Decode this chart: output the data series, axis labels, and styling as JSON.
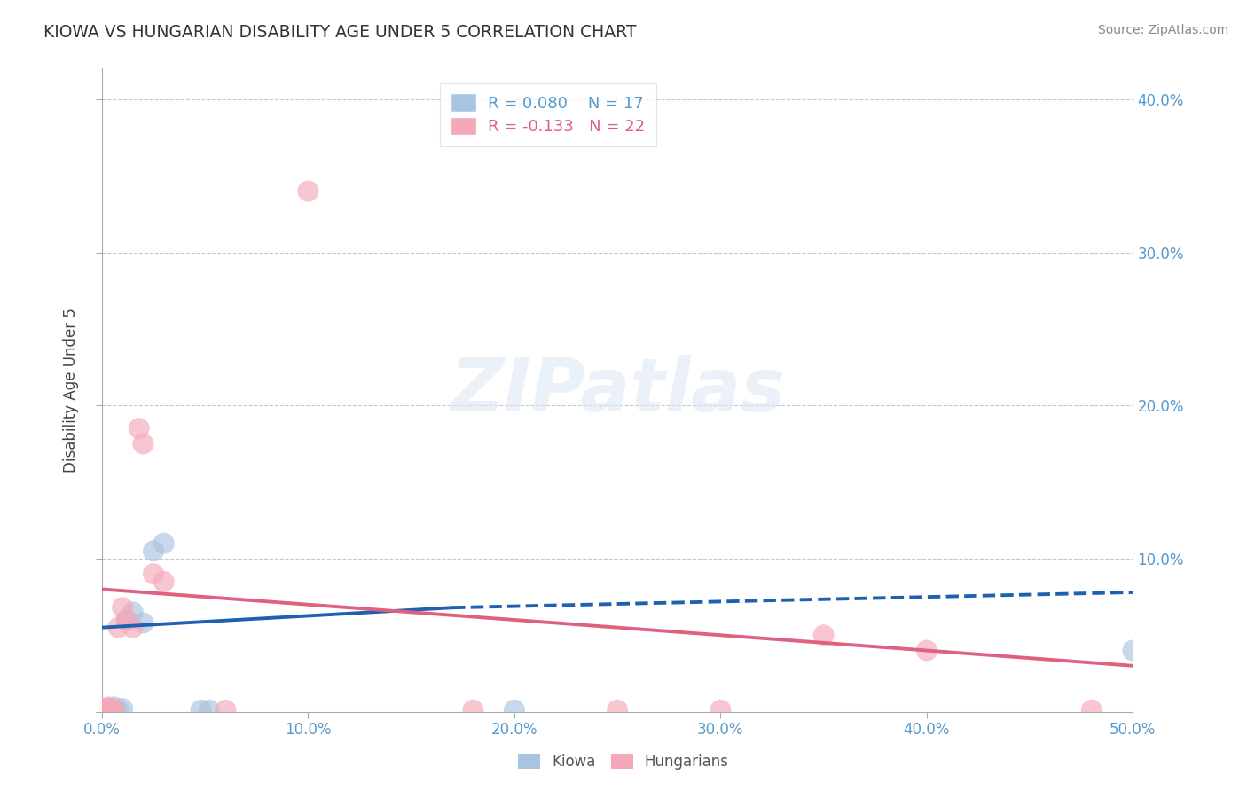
{
  "title": "KIOWA VS HUNGARIAN DISABILITY AGE UNDER 5 CORRELATION CHART",
  "source": "Source: ZipAtlas.com",
  "ylabel": "Disability Age Under 5",
  "xlim": [
    0.0,
    0.5
  ],
  "ylim": [
    0.0,
    0.42
  ],
  "xticks": [
    0.0,
    0.1,
    0.2,
    0.3,
    0.4,
    0.5
  ],
  "yticks": [
    0.0,
    0.1,
    0.2,
    0.3,
    0.4
  ],
  "ytick_labels": [
    "",
    "10.0%",
    "20.0%",
    "30.0%",
    "40.0%"
  ],
  "xtick_labels": [
    "0.0%",
    "10.0%",
    "20.0%",
    "30.0%",
    "40.0%",
    "50.0%"
  ],
  "background_color": "#ffffff",
  "grid_color": "#c8c8c8",
  "watermark_text": "ZIPatlas",
  "kiowa_color": "#a8c4e0",
  "hungarian_color": "#f4a8b8",
  "kiowa_line_color": "#2060b0",
  "hungarian_line_color": "#e06080",
  "kiowa_R": 0.08,
  "kiowa_N": 17,
  "hungarian_R": -0.133,
  "hungarian_N": 22,
  "kiowa_points": [
    [
      0.001,
      0.001
    ],
    [
      0.002,
      0.002
    ],
    [
      0.003,
      0.001
    ],
    [
      0.004,
      0.002
    ],
    [
      0.005,
      0.001
    ],
    [
      0.006,
      0.003
    ],
    [
      0.008,
      0.001
    ],
    [
      0.01,
      0.002
    ],
    [
      0.012,
      0.06
    ],
    [
      0.015,
      0.065
    ],
    [
      0.02,
      0.058
    ],
    [
      0.025,
      0.105
    ],
    [
      0.03,
      0.11
    ],
    [
      0.048,
      0.001
    ],
    [
      0.052,
      0.001
    ],
    [
      0.2,
      0.001
    ],
    [
      0.5,
      0.04
    ]
  ],
  "hungarian_points": [
    [
      0.001,
      0.002
    ],
    [
      0.002,
      0.001
    ],
    [
      0.003,
      0.003
    ],
    [
      0.004,
      0.001
    ],
    [
      0.005,
      0.002
    ],
    [
      0.006,
      0.001
    ],
    [
      0.008,
      0.055
    ],
    [
      0.01,
      0.068
    ],
    [
      0.012,
      0.06
    ],
    [
      0.015,
      0.055
    ],
    [
      0.018,
      0.185
    ],
    [
      0.02,
      0.175
    ],
    [
      0.025,
      0.09
    ],
    [
      0.03,
      0.085
    ],
    [
      0.06,
      0.001
    ],
    [
      0.1,
      0.34
    ],
    [
      0.18,
      0.001
    ],
    [
      0.25,
      0.001
    ],
    [
      0.3,
      0.001
    ],
    [
      0.35,
      0.05
    ],
    [
      0.4,
      0.04
    ],
    [
      0.48,
      0.001
    ]
  ],
  "kiowa_trendline_solid": [
    [
      0.0,
      0.055
    ],
    [
      0.17,
      0.068
    ]
  ],
  "kiowa_trendline_dashed": [
    [
      0.17,
      0.068
    ],
    [
      0.5,
      0.078
    ]
  ],
  "hungarian_trendline": [
    [
      0.0,
      0.08
    ],
    [
      0.5,
      0.03
    ]
  ]
}
